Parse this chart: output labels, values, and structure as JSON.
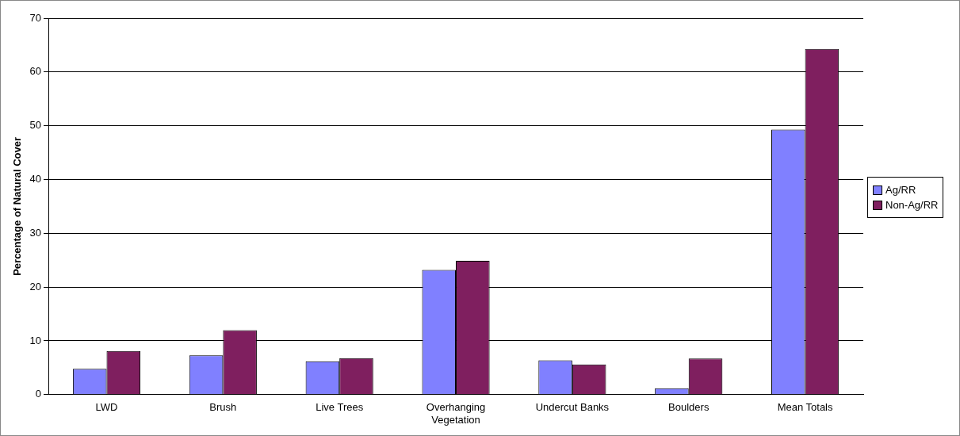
{
  "chart_data": {
    "type": "bar",
    "ylabel": "Percentage of Natural Cover",
    "categories": [
      "LWD",
      "Brush",
      "Live Trees",
      "Overhanging Vegetation",
      "Undercut Banks",
      "Boulders",
      "Mean Totals"
    ],
    "series": [
      {
        "name": "Ag/RR",
        "color": "#8080ff",
        "values": [
          4.8,
          7.3,
          6.2,
          23.2,
          6.4,
          1.2,
          49.3
        ]
      },
      {
        "name": "Non-Ag/RR",
        "color": "#7f1f5f",
        "values": [
          8.1,
          12.0,
          6.8,
          24.9,
          5.6,
          6.7,
          64.3
        ]
      }
    ],
    "ylim": [
      0,
      70
    ],
    "yticks": [
      0,
      10,
      20,
      30,
      40,
      50,
      60,
      70
    ],
    "grid": "y",
    "legend": "right"
  }
}
